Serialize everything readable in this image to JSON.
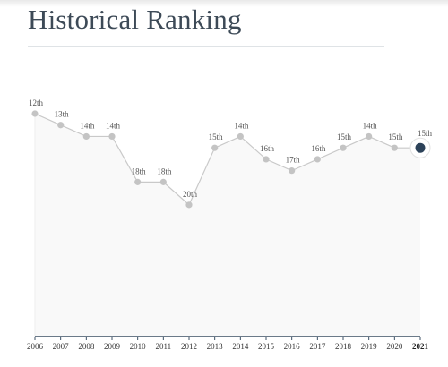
{
  "page": {
    "title": "Historical Ranking"
  },
  "chart_data": {
    "type": "area",
    "title": "",
    "xlabel": "",
    "ylabel": "",
    "x": [
      "2006",
      "2007",
      "2008",
      "2009",
      "2010",
      "2011",
      "2012",
      "2013",
      "2014",
      "2015",
      "2016",
      "2017",
      "2018",
      "2019",
      "2020",
      "2021"
    ],
    "series": [
      {
        "values": [
          12,
          13,
          14,
          14,
          18,
          18,
          20,
          15,
          14,
          16,
          17,
          16,
          15,
          14,
          15,
          15
        ],
        "labels": [
          "12th",
          "13th",
          "14th",
          "14th",
          "18th",
          "18th",
          "20th",
          "15th",
          "14th",
          "16th",
          "17th",
          "16th",
          "15th",
          "14th",
          "15th",
          "15th"
        ]
      }
    ],
    "highlight_category": "2021",
    "y_reversed": true,
    "grid": false,
    "legend": "none",
    "colors": {
      "line": "#c9c9c9",
      "point": "#c4c4c4",
      "highlight_point": "#2c4259",
      "highlight_ring": "#ffffff",
      "area": "#f9f9f9",
      "axis": "#3c5064"
    }
  }
}
